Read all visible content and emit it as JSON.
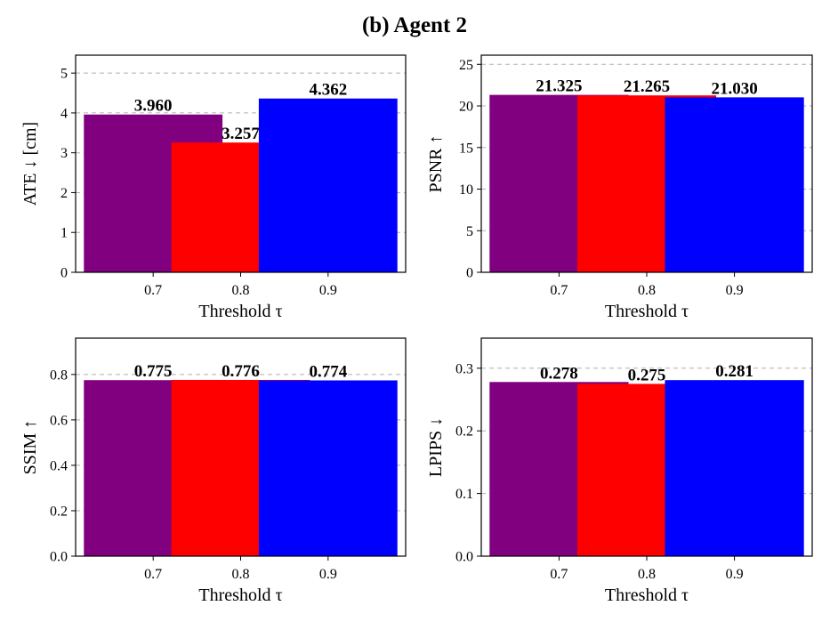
{
  "title": "(b) Agent 2",
  "colors": {
    "purple": "#800080",
    "red": "#ff0000",
    "blue": "#0000ff"
  },
  "chart_data": [
    {
      "type": "bar",
      "categories": [
        "0.7",
        "0.8",
        "0.9"
      ],
      "values": [
        3.96,
        3.257,
        4.362
      ],
      "labels": [
        "3.960",
        "3.257",
        "4.362"
      ],
      "bar_colors": [
        "#800080",
        "#ff0000",
        "#0000ff"
      ],
      "xlabel": "Threshold τ",
      "ylabel": "ATE ↓  [cm]",
      "ylim": [
        0,
        5.45
      ],
      "yticks": [
        0,
        1,
        2,
        3,
        4,
        5
      ],
      "ytick_labels": [
        "0",
        "1",
        "2",
        "3",
        "4",
        "5"
      ],
      "grid": true
    },
    {
      "type": "bar",
      "categories": [
        "0.7",
        "0.8",
        "0.9"
      ],
      "values": [
        21.325,
        21.265,
        21.03
      ],
      "labels": [
        "21.325",
        "21.265",
        "21.030"
      ],
      "bar_colors": [
        "#800080",
        "#ff0000",
        "#0000ff"
      ],
      "xlabel": "Threshold τ",
      "ylabel": "PSNR ↑",
      "ylim": [
        0,
        26.1
      ],
      "yticks": [
        0,
        5,
        10,
        15,
        20,
        25
      ],
      "ytick_labels": [
        "0",
        "5",
        "10",
        "15",
        "20",
        "25"
      ],
      "grid": true
    },
    {
      "type": "bar",
      "categories": [
        "0.7",
        "0.8",
        "0.9"
      ],
      "values": [
        0.775,
        0.776,
        0.774
      ],
      "labels": [
        "0.775",
        "0.776",
        "0.774"
      ],
      "bar_colors": [
        "#800080",
        "#ff0000",
        "#0000ff"
      ],
      "xlabel": "Threshold τ",
      "ylabel": "SSIM ↑",
      "ylim": [
        0,
        0.96
      ],
      "yticks": [
        0,
        0.2,
        0.4,
        0.6,
        0.8
      ],
      "ytick_labels": [
        "0.0",
        "0.2",
        "0.4",
        "0.6",
        "0.8"
      ],
      "grid": true
    },
    {
      "type": "bar",
      "categories": [
        "0.7",
        "0.8",
        "0.9"
      ],
      "values": [
        0.278,
        0.275,
        0.281
      ],
      "labels": [
        "0.278",
        "0.275",
        "0.281"
      ],
      "bar_colors": [
        "#800080",
        "#ff0000",
        "#0000ff"
      ],
      "xlabel": "Threshold τ",
      "ylabel": "LPIPS ↓",
      "ylim": [
        0,
        0.348
      ],
      "yticks": [
        0,
        0.1,
        0.2,
        0.3
      ],
      "ytick_labels": [
        "0.0",
        "0.1",
        "0.2",
        "0.3"
      ],
      "grid": true
    }
  ]
}
